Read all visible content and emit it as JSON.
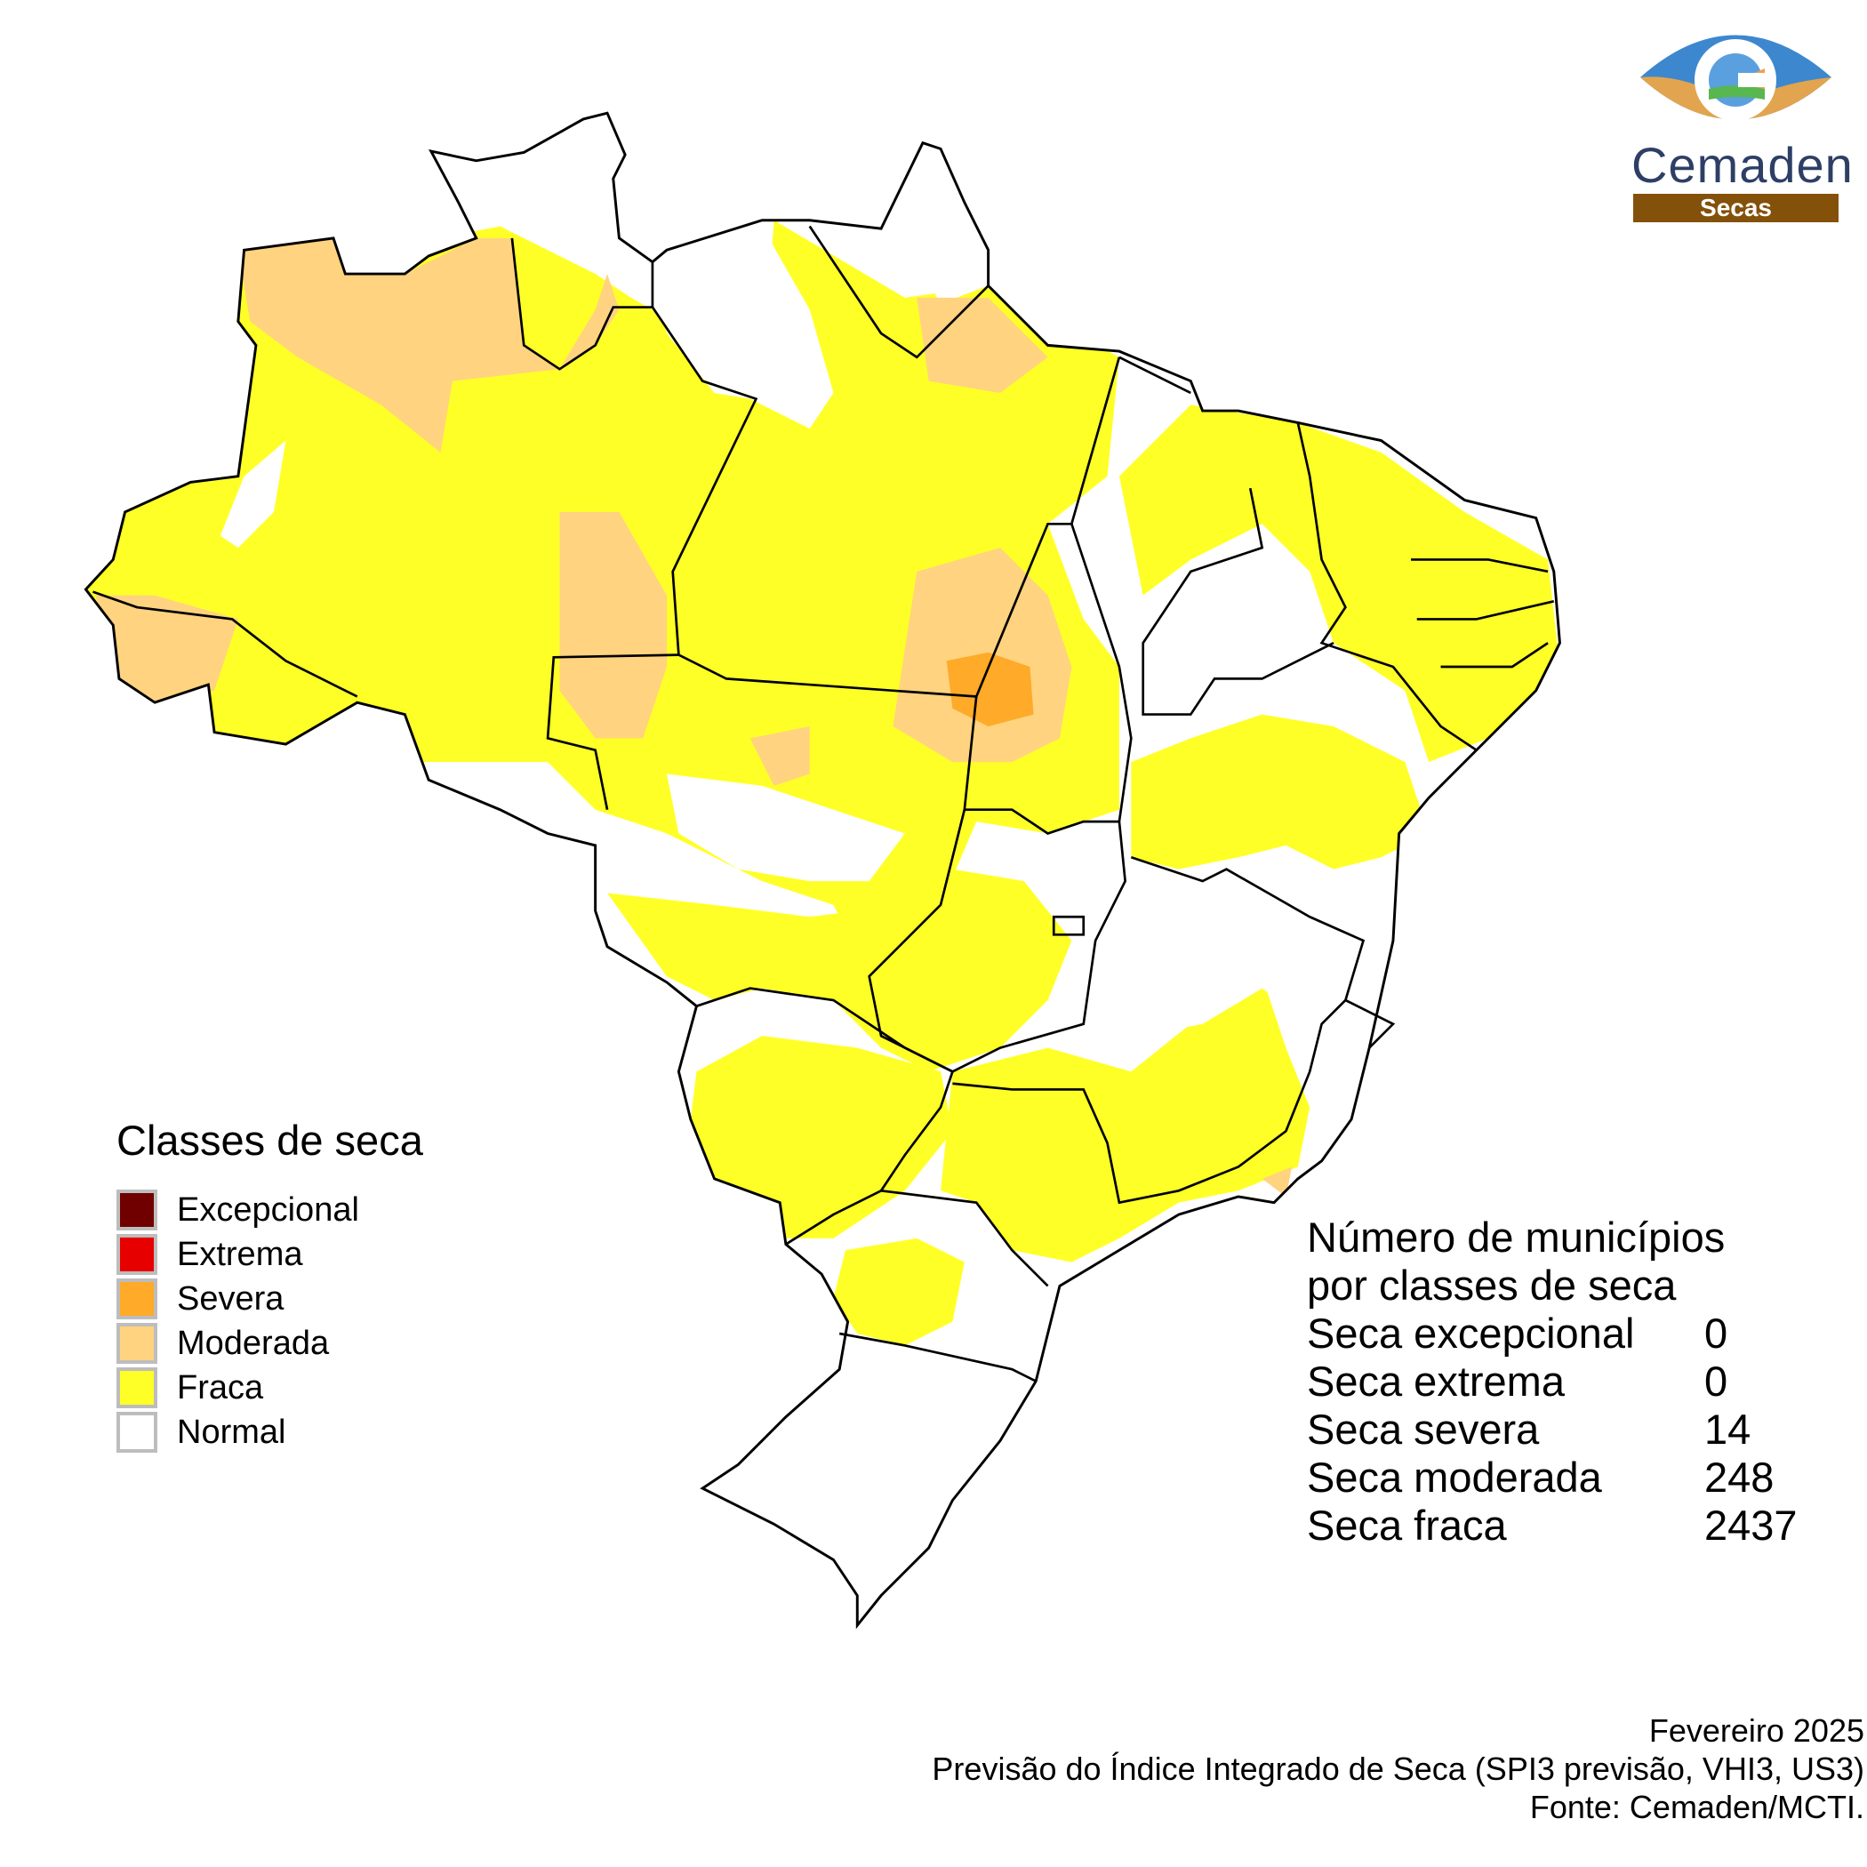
{
  "logo": {
    "name": "Cemaden",
    "subtitle": "Secas"
  },
  "legend": {
    "title": "Classes de seca",
    "items": [
      {
        "label": "Excepcional",
        "color": "#700000"
      },
      {
        "label": "Extrema",
        "color": "#e60000"
      },
      {
        "label": "Severa",
        "color": "#ffaa28"
      },
      {
        "label": "Moderada",
        "color": "#ffd37f"
      },
      {
        "label": "Fraca",
        "color": "#ffff28"
      },
      {
        "label": "Normal",
        "color": "#ffffff"
      }
    ]
  },
  "stats": {
    "title_line1": "Número de municípios",
    "title_line2": "por classes de seca",
    "rows": [
      {
        "label": "Seca excepcional",
        "value": "0"
      },
      {
        "label": "Seca extrema",
        "value": "0"
      },
      {
        "label": "Seca severa",
        "value": "14"
      },
      {
        "label": "Seca moderada",
        "value": "248"
      },
      {
        "label": "Seca fraca",
        "value": "2437"
      }
    ]
  },
  "footer": {
    "date": "Fevereiro 2025",
    "product": "Previsão do Índice Integrado de Seca (SPI3 previsão, VHI3, US3)",
    "source": "Fonte: Cemaden/MCTI."
  }
}
